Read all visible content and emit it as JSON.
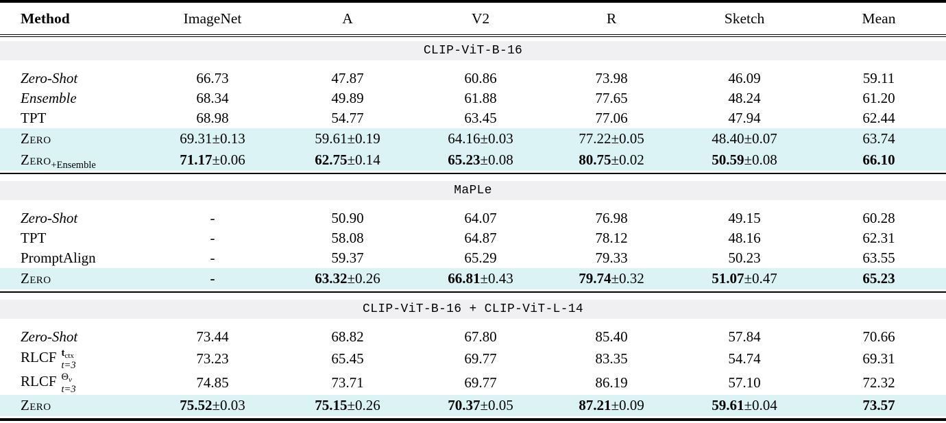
{
  "colors": {
    "highlight_row": "#dbf3f5",
    "section_band": "#f0f0f3",
    "rule": "#000000",
    "text": "#000000"
  },
  "header": {
    "columns": [
      "Method",
      "ImageNet",
      "A",
      "V2",
      "R",
      "Sketch",
      "Mean"
    ]
  },
  "sections": [
    {
      "title": "CLIP-ViT-B-16",
      "rows": [
        {
          "method": "Zero-Shot",
          "cells": [
            {
              "v": "66.73"
            },
            {
              "v": "47.87"
            },
            {
              "v": "60.86"
            },
            {
              "v": "73.98"
            },
            {
              "v": "46.09"
            },
            {
              "v": "59.11"
            }
          ]
        },
        {
          "method": "Ensemble",
          "cells": [
            {
              "v": "68.34"
            },
            {
              "v": "49.89"
            },
            {
              "v": "61.88"
            },
            {
              "v": "77.65"
            },
            {
              "v": "48.24"
            },
            {
              "v": "61.20"
            }
          ]
        },
        {
          "method": "TPT",
          "cells": [
            {
              "v": "68.98"
            },
            {
              "v": "54.77"
            },
            {
              "v": "63.45"
            },
            {
              "v": "77.06"
            },
            {
              "v": "47.94"
            },
            {
              "v": "62.44"
            }
          ]
        },
        {
          "method": "Zero",
          "cells": [
            {
              "v": "69.31",
              "e": "±0.13"
            },
            {
              "v": "59.61",
              "e": "±0.19"
            },
            {
              "v": "64.16",
              "e": "±0.03"
            },
            {
              "v": "77.22",
              "e": "±0.05"
            },
            {
              "v": "48.40",
              "e": "±0.07"
            },
            {
              "v": "63.74"
            }
          ]
        },
        {
          "method": "Zero",
          "method_sub": "+Ensemble",
          "cells": [
            {
              "v": "71.17",
              "e": "±0.06"
            },
            {
              "v": "62.75",
              "e": "±0.14"
            },
            {
              "v": "65.23",
              "e": "±0.08"
            },
            {
              "v": "80.75",
              "e": "±0.02"
            },
            {
              "v": "50.59",
              "e": "±0.08"
            },
            {
              "v": "66.10"
            }
          ]
        }
      ]
    },
    {
      "title": "MaPLe",
      "rows": [
        {
          "method": "Zero-Shot",
          "cells": [
            {
              "v": "-"
            },
            {
              "v": "50.90"
            },
            {
              "v": "64.07"
            },
            {
              "v": "76.98"
            },
            {
              "v": "49.15"
            },
            {
              "v": "60.28"
            }
          ]
        },
        {
          "method": "TPT",
          "cells": [
            {
              "v": "-"
            },
            {
              "v": "58.08"
            },
            {
              "v": "64.87"
            },
            {
              "v": "78.12"
            },
            {
              "v": "48.16"
            },
            {
              "v": "62.31"
            }
          ]
        },
        {
          "method": "PromptAlign",
          "cells": [
            {
              "v": "-"
            },
            {
              "v": "59.37"
            },
            {
              "v": "65.29"
            },
            {
              "v": "79.33"
            },
            {
              "v": "50.23"
            },
            {
              "v": "63.55"
            }
          ]
        },
        {
          "method": "Zero",
          "cells": [
            {
              "v": "-"
            },
            {
              "v": "63.32",
              "e": "±0.26"
            },
            {
              "v": "66.81",
              "e": "±0.43"
            },
            {
              "v": "79.74",
              "e": "±0.32"
            },
            {
              "v": "51.07",
              "e": "±0.47"
            },
            {
              "v": "65.23"
            }
          ]
        }
      ]
    },
    {
      "title": "CLIP-ViT-B-16 + CLIP-ViT-L-14",
      "rows": [
        {
          "method": "Zero-Shot",
          "cells": [
            {
              "v": "73.44"
            },
            {
              "v": "68.82"
            },
            {
              "v": "67.80"
            },
            {
              "v": "85.40"
            },
            {
              "v": "57.84"
            },
            {
              "v": "70.66"
            }
          ]
        },
        {
          "method": "RLCF",
          "sup_main": "t",
          "sup_sub": "ctx",
          "sub": "t=3",
          "cells": [
            {
              "v": "73.23"
            },
            {
              "v": "65.45"
            },
            {
              "v": "69.77"
            },
            {
              "v": "83.35"
            },
            {
              "v": "54.74"
            },
            {
              "v": "69.31"
            }
          ]
        },
        {
          "method": "RLCF",
          "sup_main": "Θ",
          "sup_sub": "v",
          "sub": "t=3",
          "cells": [
            {
              "v": "74.85"
            },
            {
              "v": "73.71"
            },
            {
              "v": "69.77"
            },
            {
              "v": "86.19"
            },
            {
              "v": "57.10"
            },
            {
              "v": "72.32"
            }
          ]
        },
        {
          "method": "Zero",
          "cells": [
            {
              "v": "75.52",
              "e": "±0.03"
            },
            {
              "v": "75.15",
              "e": "±0.26"
            },
            {
              "v": "70.37",
              "e": "±0.05"
            },
            {
              "v": "87.21",
              "e": "±0.09"
            },
            {
              "v": "59.61",
              "e": "±0.04"
            },
            {
              "v": "73.57"
            }
          ]
        }
      ]
    }
  ]
}
